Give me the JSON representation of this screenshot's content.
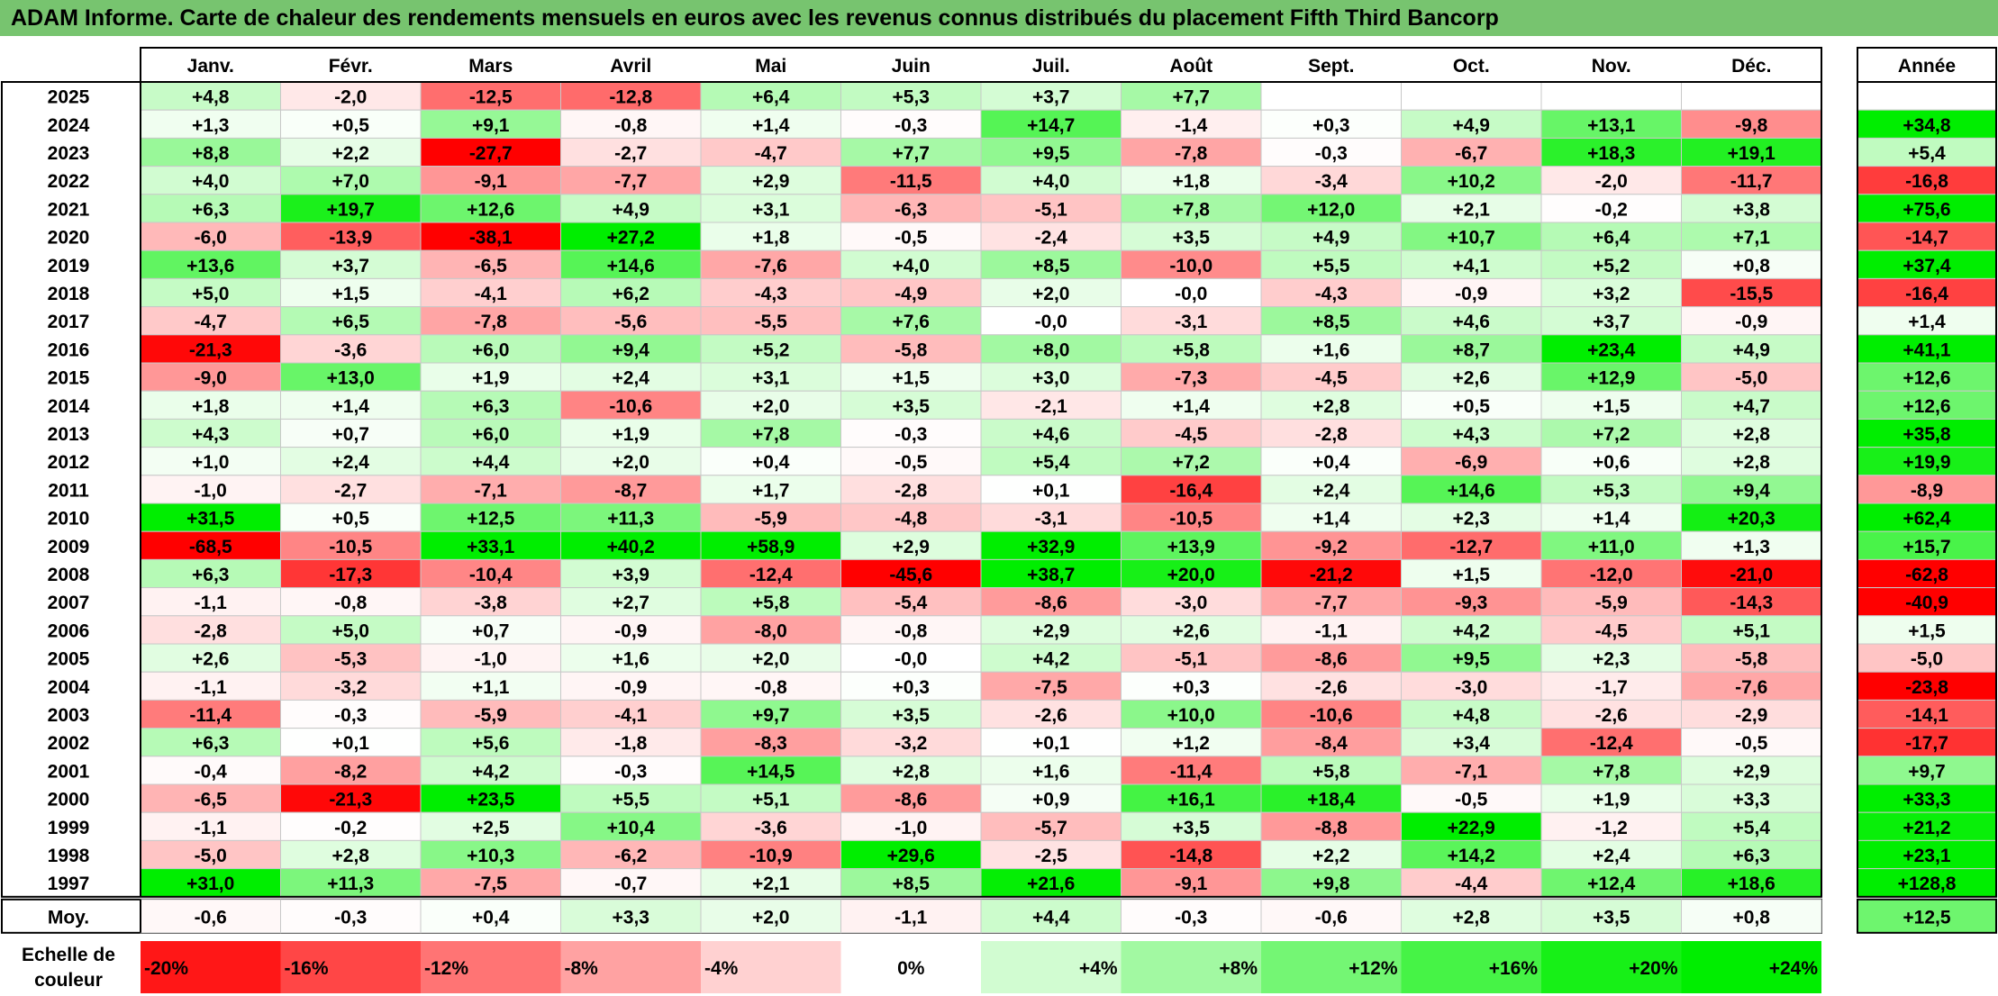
{
  "title": "ADAM Informe. Carte de chaleur des rendements mensuels en euros avec les revenus connus distribués du placement Fifth Third Bancorp",
  "chart_data": {
    "type": "heatmap",
    "months": [
      "Janv.",
      "Févr.",
      "Mars",
      "Avril",
      "Mai",
      "Juin",
      "Juil.",
      "Août",
      "Sept.",
      "Oct.",
      "Nov.",
      "Déc."
    ],
    "annual_header": "Année",
    "rows": [
      {
        "year": "2025",
        "values": [
          "+4,8",
          "-2,0",
          "-12,5",
          "-12,8",
          "+6,4",
          "+5,3",
          "+3,7",
          "+7,7",
          "",
          "",
          "",
          ""
        ],
        "annual": ""
      },
      {
        "year": "2024",
        "values": [
          "+1,3",
          "+0,5",
          "+9,1",
          "-0,8",
          "+1,4",
          "-0,3",
          "+14,7",
          "-1,4",
          "+0,3",
          "+4,9",
          "+13,1",
          "-9,8"
        ],
        "annual": "+34,8"
      },
      {
        "year": "2023",
        "values": [
          "+8,8",
          "+2,2",
          "-27,7",
          "-2,7",
          "-4,7",
          "+7,7",
          "+9,5",
          "-7,8",
          "-0,3",
          "-6,7",
          "+18,3",
          "+19,1"
        ],
        "annual": "+5,4"
      },
      {
        "year": "2022",
        "values": [
          "+4,0",
          "+7,0",
          "-9,1",
          "-7,7",
          "+2,9",
          "-11,5",
          "+4,0",
          "+1,8",
          "-3,4",
          "+10,2",
          "-2,0",
          "-11,7"
        ],
        "annual": "-16,8"
      },
      {
        "year": "2021",
        "values": [
          "+6,3",
          "+19,7",
          "+12,6",
          "+4,9",
          "+3,1",
          "-6,3",
          "-5,1",
          "+7,8",
          "+12,0",
          "+2,1",
          "-0,2",
          "+3,8"
        ],
        "annual": "+75,6"
      },
      {
        "year": "2020",
        "values": [
          "-6,0",
          "-13,9",
          "-38,1",
          "+27,2",
          "+1,8",
          "-0,5",
          "-2,4",
          "+3,5",
          "+4,9",
          "+10,7",
          "+6,4",
          "+7,1"
        ],
        "annual": "-14,7"
      },
      {
        "year": "2019",
        "values": [
          "+13,6",
          "+3,7",
          "-6,5",
          "+14,6",
          "-7,6",
          "+4,0",
          "+8,5",
          "-10,0",
          "+5,5",
          "+4,1",
          "+5,2",
          "+0,8"
        ],
        "annual": "+37,4"
      },
      {
        "year": "2018",
        "values": [
          "+5,0",
          "+1,5",
          "-4,1",
          "+6,2",
          "-4,3",
          "-4,9",
          "+2,0",
          "-0,0",
          "-4,3",
          "-0,9",
          "+3,2",
          "-15,5"
        ],
        "annual": "-16,4"
      },
      {
        "year": "2017",
        "values": [
          "-4,7",
          "+6,5",
          "-7,8",
          "-5,6",
          "-5,5",
          "+7,6",
          "-0,0",
          "-3,1",
          "+8,5",
          "+4,6",
          "+3,7",
          "-0,9"
        ],
        "annual": "+1,4"
      },
      {
        "year": "2016",
        "values": [
          "-21,3",
          "-3,6",
          "+6,0",
          "+9,4",
          "+5,2",
          "-5,8",
          "+8,0",
          "+5,8",
          "+1,6",
          "+8,7",
          "+23,4",
          "+4,9"
        ],
        "annual": "+41,1"
      },
      {
        "year": "2015",
        "values": [
          "-9,0",
          "+13,0",
          "+1,9",
          "+2,4",
          "+3,1",
          "+1,5",
          "+3,0",
          "-7,3",
          "-4,5",
          "+2,6",
          "+12,9",
          "-5,0"
        ],
        "annual": "+12,6"
      },
      {
        "year": "2014",
        "values": [
          "+1,8",
          "+1,4",
          "+6,3",
          "-10,6",
          "+2,0",
          "+3,5",
          "-2,1",
          "+1,4",
          "+2,8",
          "+0,5",
          "+1,5",
          "+4,7"
        ],
        "annual": "+12,6"
      },
      {
        "year": "2013",
        "values": [
          "+4,3",
          "+0,7",
          "+6,0",
          "+1,9",
          "+7,8",
          "-0,3",
          "+4,6",
          "-4,5",
          "-2,8",
          "+4,3",
          "+7,2",
          "+2,8"
        ],
        "annual": "+35,8"
      },
      {
        "year": "2012",
        "values": [
          "+1,0",
          "+2,4",
          "+4,4",
          "+2,0",
          "+0,4",
          "-0,5",
          "+5,4",
          "+7,2",
          "+0,4",
          "-6,9",
          "+0,6",
          "+2,8"
        ],
        "annual": "+19,9"
      },
      {
        "year": "2011",
        "values": [
          "-1,0",
          "-2,7",
          "-7,1",
          "-8,7",
          "+1,7",
          "-2,8",
          "+0,1",
          "-16,4",
          "+2,4",
          "+14,6",
          "+5,3",
          "+9,4"
        ],
        "annual": "-8,9"
      },
      {
        "year": "2010",
        "values": [
          "+31,5",
          "+0,5",
          "+12,5",
          "+11,3",
          "-5,9",
          "-4,8",
          "-3,1",
          "-10,5",
          "+1,4",
          "+2,3",
          "+1,4",
          "+20,3"
        ],
        "annual": "+62,4"
      },
      {
        "year": "2009",
        "values": [
          "-68,5",
          "-10,5",
          "+33,1",
          "+40,2",
          "+58,9",
          "+2,9",
          "+32,9",
          "+13,9",
          "-9,2",
          "-12,7",
          "+11,0",
          "+1,3"
        ],
        "annual": "+15,7"
      },
      {
        "year": "2008",
        "values": [
          "+6,3",
          "-17,3",
          "-10,4",
          "+3,9",
          "-12,4",
          "-45,6",
          "+38,7",
          "+20,0",
          "-21,2",
          "+1,5",
          "-12,0",
          "-21,0"
        ],
        "annual": "-62,8"
      },
      {
        "year": "2007",
        "values": [
          "-1,1",
          "-0,8",
          "-3,8",
          "+2,7",
          "+5,8",
          "-5,4",
          "-8,6",
          "-3,0",
          "-7,7",
          "-9,3",
          "-5,9",
          "-14,3"
        ],
        "annual": "-40,9"
      },
      {
        "year": "2006",
        "values": [
          "-2,8",
          "+5,0",
          "+0,7",
          "-0,9",
          "-8,0",
          "-0,8",
          "+2,9",
          "+2,6",
          "-1,1",
          "+4,2",
          "-4,5",
          "+5,1"
        ],
        "annual": "+1,5"
      },
      {
        "year": "2005",
        "values": [
          "+2,6",
          "-5,3",
          "-1,0",
          "+1,6",
          "+2,0",
          "-0,0",
          "+4,2",
          "-5,1",
          "-8,6",
          "+9,5",
          "+2,3",
          "-5,8"
        ],
        "annual": "-5,0"
      },
      {
        "year": "2004",
        "values": [
          "-1,1",
          "-3,2",
          "+1,1",
          "-0,9",
          "-0,8",
          "+0,3",
          "-7,5",
          "+0,3",
          "-2,6",
          "-3,0",
          "-1,7",
          "-7,6"
        ],
        "annual": "-23,8"
      },
      {
        "year": "2003",
        "values": [
          "-11,4",
          "-0,3",
          "-5,9",
          "-4,1",
          "+9,7",
          "+3,5",
          "-2,6",
          "+10,0",
          "-10,6",
          "+4,8",
          "-2,6",
          "-2,9"
        ],
        "annual": "-14,1"
      },
      {
        "year": "2002",
        "values": [
          "+6,3",
          "+0,1",
          "+5,6",
          "-1,8",
          "-8,3",
          "-3,2",
          "+0,1",
          "+1,2",
          "-8,4",
          "+3,4",
          "-12,4",
          "-0,5"
        ],
        "annual": "-17,7"
      },
      {
        "year": "2001",
        "values": [
          "-0,4",
          "-8,2",
          "+4,2",
          "-0,3",
          "+14,5",
          "+2,8",
          "+1,6",
          "-11,4",
          "+5,8",
          "-7,1",
          "+7,8",
          "+2,9"
        ],
        "annual": "+9,7"
      },
      {
        "year": "2000",
        "values": [
          "-6,5",
          "-21,3",
          "+23,5",
          "+5,5",
          "+5,1",
          "-8,6",
          "+0,9",
          "+16,1",
          "+18,4",
          "-0,5",
          "+1,9",
          "+3,3"
        ],
        "annual": "+33,3"
      },
      {
        "year": "1999",
        "values": [
          "-1,1",
          "-0,2",
          "+2,5",
          "+10,4",
          "-3,6",
          "-1,0",
          "-5,7",
          "+3,5",
          "-8,8",
          "+22,9",
          "-1,2",
          "+5,4"
        ],
        "annual": "+21,2"
      },
      {
        "year": "1998",
        "values": [
          "-5,0",
          "+2,8",
          "+10,3",
          "-6,2",
          "-10,9",
          "+29,6",
          "-2,5",
          "-14,8",
          "+2,2",
          "+14,2",
          "+2,4",
          "+6,3"
        ],
        "annual": "+23,1"
      },
      {
        "year": "1997",
        "values": [
          "+31,0",
          "+11,3",
          "-7,5",
          "-0,7",
          "+2,1",
          "+8,5",
          "+21,6",
          "-9,1",
          "+9,8",
          "-4,4",
          "+12,4",
          "+18,6"
        ],
        "annual": "+128,8"
      }
    ],
    "average": {
      "label": "Moy.",
      "values": [
        "-0,6",
        "-0,3",
        "+0,4",
        "+3,3",
        "+2,0",
        "-1,1",
        "+4,4",
        "-0,3",
        "-0,6",
        "+2,8",
        "+3,5",
        "+0,8"
      ],
      "annual": "+12,5"
    },
    "color_scale": {
      "label_line1": "Echelle de",
      "label_line2": "couleur",
      "stops": [
        "-20%",
        "-16%",
        "-12%",
        "-8%",
        "-4%",
        "0%",
        "+4%",
        "+8%",
        "+12%",
        "+16%",
        "+20%",
        "+24%"
      ],
      "stop_values": [
        -20,
        -16,
        -12,
        -8,
        -4,
        0,
        4,
        8,
        12,
        16,
        20,
        24
      ],
      "negative_color": "#ff0000",
      "neutral_color": "#ffffff",
      "positive_color": "#00ee00"
    }
  }
}
